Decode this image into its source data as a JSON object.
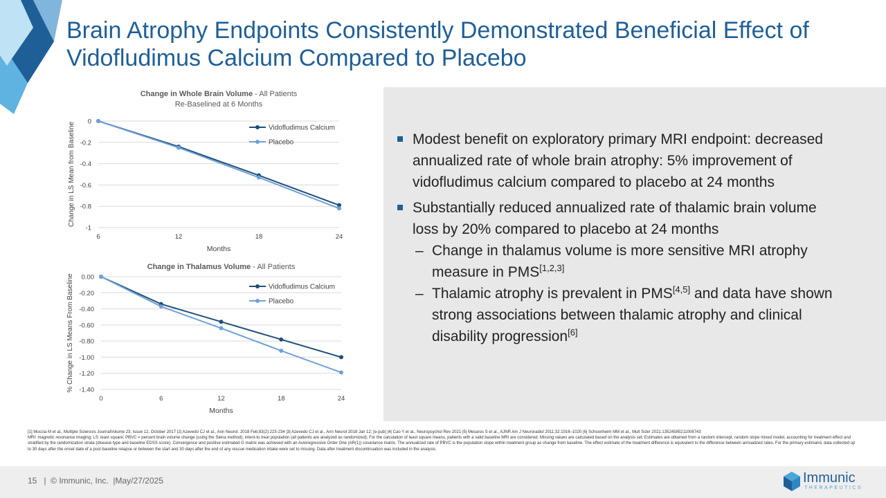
{
  "title": "Brain Atrophy Endpoints Consistently Demonstrated Beneficial Effect of Vidofludimus Calcium Compared to Placebo",
  "colors": {
    "accent": "#1f5f97",
    "series_dark": "#1f4e79",
    "series_light": "#6fa0d8",
    "panel": "#e8e8e8"
  },
  "chart_data": [
    {
      "type": "line",
      "title": "Change in Whole Brain Volume",
      "title_suffix": " - All Patients",
      "subtitle": "Re-Baselined at 6 Months",
      "xlabel": "Months",
      "ylabel": "Change in LS Mean from Baseline",
      "x": [
        6,
        12,
        18,
        24
      ],
      "x_ticks": [
        "6",
        "12",
        "18",
        "24"
      ],
      "y_ticks": [
        "0",
        "-0.2",
        "-0.4",
        "-0.6",
        "-0.8",
        "-1"
      ],
      "ylim": [
        -1,
        0
      ],
      "grid": true,
      "legend": "top-right",
      "series": [
        {
          "name": "Vidofludimus Calcium",
          "values": [
            0,
            -0.24,
            -0.51,
            -0.79
          ]
        },
        {
          "name": "Placebo",
          "values": [
            0,
            -0.25,
            -0.53,
            -0.82
          ]
        }
      ]
    },
    {
      "type": "line",
      "title": "Change in Thalamus Volume",
      "title_suffix": " - All Patients",
      "subtitle": "",
      "xlabel": "Months",
      "ylabel": "% Change in LS Means From Baseline",
      "x": [
        0,
        6,
        12,
        18,
        24
      ],
      "x_ticks": [
        "0",
        "6",
        "12",
        "18",
        "24"
      ],
      "y_ticks": [
        "0.00",
        "-0.20",
        "-0.40",
        "-0.60",
        "-0.80",
        "-1.00",
        "-1.20",
        "-1.40"
      ],
      "ylim": [
        -1.4,
        0
      ],
      "grid": true,
      "legend": "top-right",
      "series": [
        {
          "name": "Vidofludimus Calcium",
          "values": [
            0,
            -0.34,
            -0.56,
            -0.78,
            -1.0
          ]
        },
        {
          "name": "Placebo",
          "values": [
            0,
            -0.37,
            -0.64,
            -0.92,
            -1.19
          ]
        }
      ]
    }
  ],
  "bullets": [
    {
      "text": "Modest benefit on exploratory primary MRI endpoint: decreased annualized rate of whole brain atrophy: 5% improvement of vidofludimus calcium compared to placebo at 24 months"
    },
    {
      "text": "Substantially reduced annualized rate of thalamic brain volume loss by 20% compared to placebo at 24 months",
      "subs": [
        {
          "pre": "Change in thalamus volume is more sensitive MRI atrophy measure in PMS",
          "sup1": "[1,2,3]",
          "mid": "",
          "sup2": "",
          "post": ""
        },
        {
          "pre": "Thalamic atrophy is prevalent in PMS",
          "sup1": "[4,5]",
          "mid": " and data have shown strong associations between thalamic atrophy and clinical disability progression",
          "sup2": "[6]",
          "post": ""
        }
      ]
    }
  ],
  "dash": "–",
  "footnotes": [
    "[1] Moccia M et al., Multiple Sclerosis JournalVolume 23, Issue 12, October 2017 |2| Azevedo CJ et al., Ann Neurol. 2018 Feb;83(2):223-234 |3| Azevedo CJ et al., Ann Neurol 2018 Jan 12; [e-pub] |4| Cao Y et al., Neuropsychol Rev 2021 |5| Mesaros S et al., AJNR Am J Neuroradiol 2011;32:1016–1020 |6| Schoonheim MM et al., Mult Scler 2021:13524585211008743",
    "MRI: magnetic resonance imaging; LS: least square; PBVC = percent brain volume change (using the Siena method); intent-to treat population (all patients are analyzed as randomized); For the calculation of least square means, patients with a valid baseline MRI are considered. Missing values are calculated based on the analysis set. Estimates are obtained from a random intercept, random slope mixed model, accounting for treatment effect and stratified by the randomization strata (disease type and baseline EDSS score). Convergence and positive estimated G matrix was achieved with an Autoregressive Order One (AR(1)) covariance matrix. The annualized rate of PBVC is the population slope within treatment group as change from baseline. The effect estimate of the treatment difference is equivalent to the difference between annualized rates. For the primary estimand, data collected up to 30 days after the onset date of a post baseline relapse or between the start and 30 days after the end of any rescue medication intake were set to missing. Data after treatment discontinuation was included in the analysis."
  ],
  "footer": {
    "page": "15",
    "sep": "|",
    "copyright": "© Immunic, Inc.",
    "date": "May/27/2025"
  },
  "logo": {
    "name": "Immunic",
    "sub": "THERAPEUTICS",
    "icon": "immunic-logo-icon"
  }
}
